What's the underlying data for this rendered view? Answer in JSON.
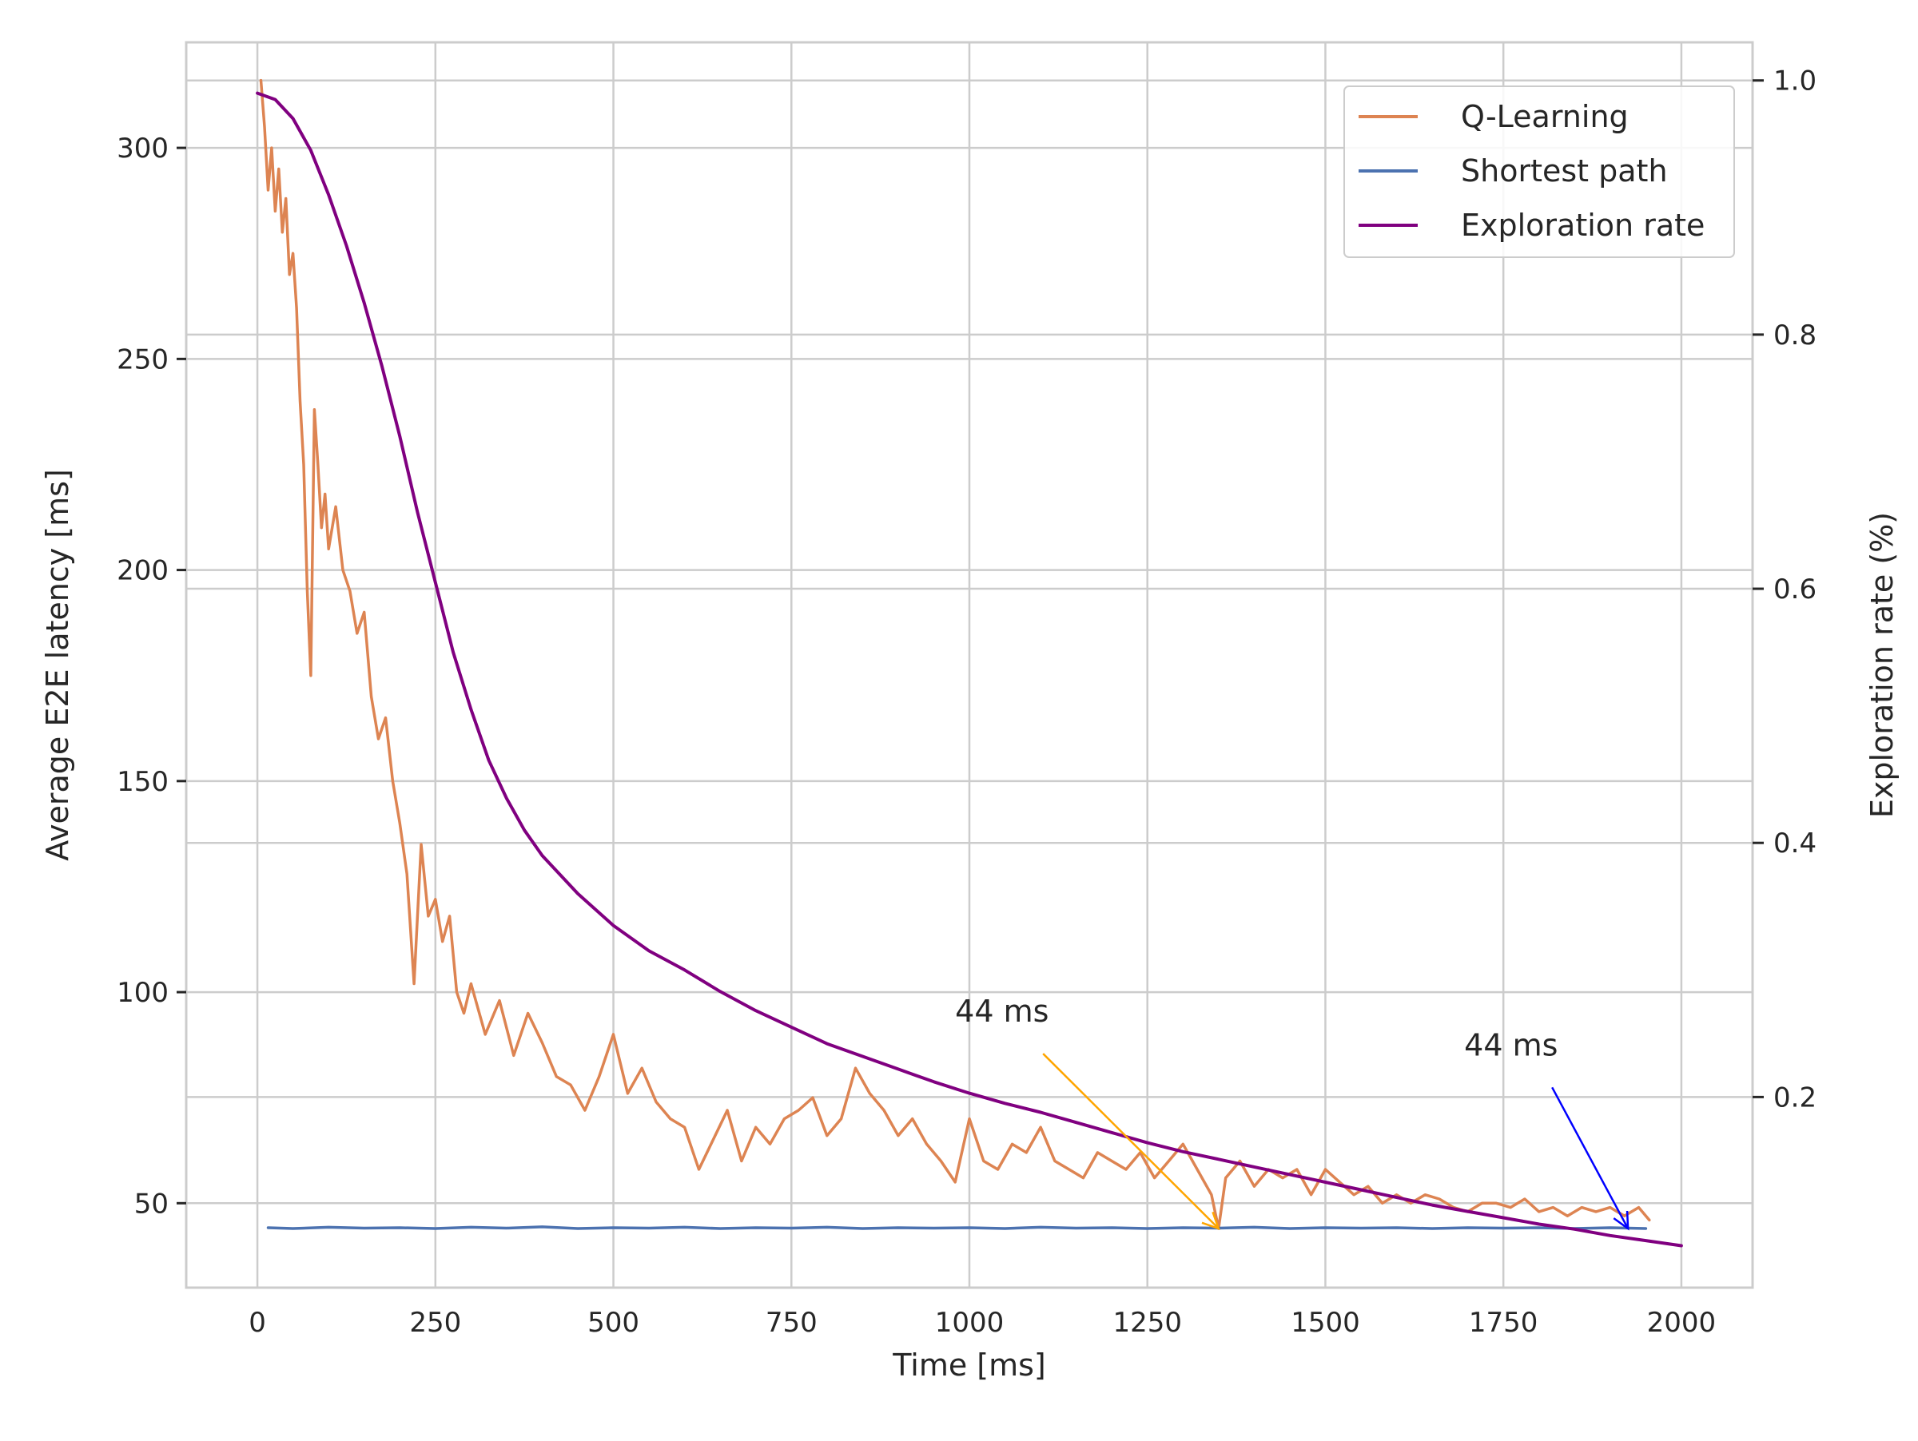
{
  "chart_data": {
    "type": "line",
    "xlabel": "Time [ms]",
    "ylabel": "Average E2E latency [ms]",
    "y2label": "Exploration rate (%)",
    "xlim": [
      -100,
      2100
    ],
    "ylim": [
      30,
      325
    ],
    "y2lim": [
      0.05,
      1.03
    ],
    "grid": true,
    "legend_position": "top-right",
    "x_ticks": [
      0,
      250,
      500,
      750,
      1000,
      1250,
      1500,
      1750,
      2000
    ],
    "x_tick_labels": [
      "0",
      "250",
      "500",
      "750",
      "1000",
      "1250",
      "1500",
      "1750",
      "2000"
    ],
    "y_ticks": [
      50,
      100,
      150,
      200,
      250,
      300
    ],
    "y_tick_labels": [
      "50",
      "100",
      "150",
      "200",
      "250",
      "300"
    ],
    "y2_ticks": [
      0.2,
      0.4,
      0.6,
      0.8,
      1.0
    ],
    "y2_tick_labels": [
      "0.2",
      "0.4",
      "0.6",
      "0.8",
      "1.0"
    ],
    "series": [
      {
        "name": "Q-Learning",
        "axis": "left",
        "color": "#dd8452",
        "x": [
          5,
          10,
          15,
          20,
          25,
          30,
          35,
          40,
          45,
          50,
          55,
          60,
          65,
          70,
          75,
          80,
          85,
          90,
          95,
          100,
          110,
          120,
          130,
          140,
          150,
          160,
          170,
          180,
          190,
          200,
          210,
          220,
          230,
          240,
          250,
          260,
          270,
          280,
          290,
          300,
          320,
          340,
          360,
          380,
          400,
          420,
          440,
          460,
          480,
          500,
          520,
          540,
          560,
          580,
          600,
          620,
          640,
          660,
          680,
          700,
          720,
          740,
          760,
          780,
          800,
          820,
          840,
          860,
          880,
          900,
          920,
          940,
          960,
          980,
          1000,
          1020,
          1040,
          1060,
          1080,
          1100,
          1120,
          1140,
          1160,
          1180,
          1200,
          1220,
          1240,
          1260,
          1280,
          1300,
          1320,
          1340,
          1350,
          1360,
          1380,
          1400,
          1420,
          1440,
          1460,
          1480,
          1500,
          1520,
          1540,
          1560,
          1580,
          1600,
          1620,
          1640,
          1660,
          1680,
          1700,
          1720,
          1740,
          1760,
          1780,
          1800,
          1820,
          1840,
          1860,
          1880,
          1900,
          1920,
          1940,
          1955
        ],
        "y": [
          316,
          305,
          290,
          300,
          285,
          295,
          280,
          288,
          270,
          275,
          262,
          240,
          225,
          195,
          175,
          238,
          225,
          210,
          218,
          205,
          215,
          200,
          195,
          185,
          190,
          170,
          160,
          165,
          150,
          140,
          128,
          102,
          135,
          118,
          122,
          112,
          118,
          100,
          95,
          102,
          90,
          98,
          85,
          95,
          88,
          80,
          78,
          72,
          80,
          90,
          76,
          82,
          74,
          70,
          68,
          58,
          65,
          72,
          60,
          68,
          64,
          70,
          72,
          75,
          66,
          70,
          82,
          76,
          72,
          66,
          70,
          64,
          60,
          55,
          70,
          60,
          58,
          64,
          62,
          68,
          60,
          58,
          56,
          62,
          60,
          58,
          62,
          56,
          60,
          64,
          58,
          52,
          44,
          56,
          60,
          54,
          58,
          56,
          58,
          52,
          58,
          55,
          52,
          54,
          50,
          52,
          50,
          52,
          51,
          49,
          48,
          50,
          50,
          49,
          51,
          48,
          49,
          47,
          49,
          48,
          49,
          47,
          49,
          46
        ]
      },
      {
        "name": "Shortest path",
        "axis": "left",
        "color": "#4c72b0",
        "x": [
          15,
          50,
          100,
          150,
          200,
          250,
          300,
          350,
          400,
          450,
          500,
          550,
          600,
          650,
          700,
          750,
          800,
          850,
          900,
          950,
          1000,
          1050,
          1100,
          1150,
          1200,
          1250,
          1300,
          1350,
          1400,
          1450,
          1500,
          1550,
          1600,
          1650,
          1700,
          1750,
          1800,
          1850,
          1900,
          1950
        ],
        "y": [
          44.2,
          44.0,
          44.3,
          44.1,
          44.2,
          44.0,
          44.3,
          44.1,
          44.4,
          44.0,
          44.2,
          44.1,
          44.3,
          44.0,
          44.2,
          44.1,
          44.3,
          44.0,
          44.2,
          44.1,
          44.2,
          44.0,
          44.3,
          44.1,
          44.2,
          44.0,
          44.2,
          44.1,
          44.3,
          44.0,
          44.2,
          44.1,
          44.2,
          44.0,
          44.2,
          44.1,
          44.2,
          44.0,
          44.2,
          44.0
        ]
      },
      {
        "name": "Exploration rate",
        "axis": "right",
        "color": "#800080",
        "x": [
          0,
          25,
          50,
          75,
          100,
          125,
          150,
          175,
          200,
          225,
          250,
          275,
          300,
          325,
          350,
          375,
          400,
          450,
          500,
          550,
          600,
          650,
          700,
          750,
          800,
          850,
          900,
          950,
          1000,
          1050,
          1100,
          1150,
          1200,
          1250,
          1300,
          1350,
          1400,
          1450,
          1500,
          1550,
          1600,
          1650,
          1700,
          1750,
          1800,
          1850,
          1900,
          1950,
          2000
        ],
        "y": [
          0.99,
          0.985,
          0.97,
          0.945,
          0.91,
          0.87,
          0.825,
          0.775,
          0.72,
          0.66,
          0.605,
          0.55,
          0.505,
          0.465,
          0.435,
          0.41,
          0.39,
          0.36,
          0.335,
          0.315,
          0.3,
          0.283,
          0.268,
          0.255,
          0.242,
          0.232,
          0.222,
          0.212,
          0.203,
          0.195,
          0.188,
          0.18,
          0.172,
          0.164,
          0.157,
          0.151,
          0.145,
          0.139,
          0.133,
          0.127,
          0.121,
          0.115,
          0.11,
          0.105,
          0.1,
          0.096,
          0.091,
          0.087,
          0.083
        ]
      }
    ],
    "annotations": [
      {
        "text": "44 ms",
        "text_x": 980,
        "text_y": 93,
        "target_x": 1350,
        "target_y": 44,
        "color": "#ffa500"
      },
      {
        "text": "44 ms",
        "text_x": 1695,
        "text_y": 85,
        "target_x": 1925,
        "target_y": 44,
        "color": "#0000ff"
      }
    ]
  }
}
